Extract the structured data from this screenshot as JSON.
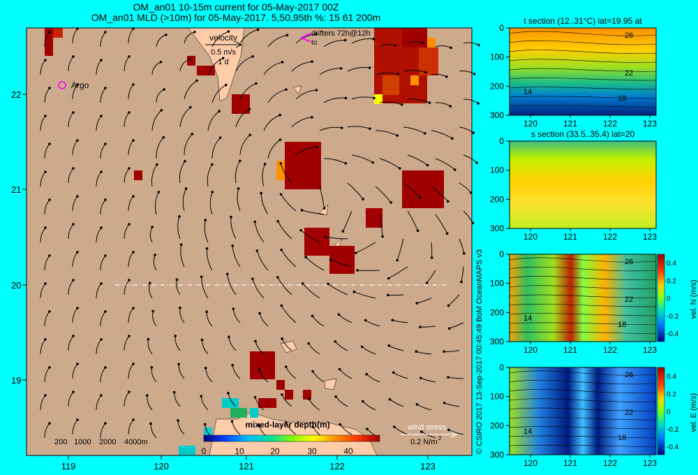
{
  "titles": {
    "line1": "OM_an01 10-15m current for 05-May-2017 00Z",
    "line2": "OM_an01 MLD (>10m) for 05-May-2017. 5,50,95th %: 15   61  200m"
  },
  "main_map": {
    "x_ticks": [
      "119",
      "120",
      "121",
      "122",
      "123"
    ],
    "y_ticks": [
      "22",
      "21",
      "20",
      "19"
    ],
    "velocity_legend": {
      "title": "velocity",
      "speed": "0.5 m/s",
      "duration": "1 d"
    },
    "drifters_label": "drifters 72h@12h",
    "drifter_marker": "to",
    "argo_label": "Argo",
    "depth_contours": [
      "200",
      "1000",
      "2000",
      "4000m"
    ],
    "colorbar": {
      "title": "mixed-layer depth(m)",
      "ticks": [
        "0",
        "10",
        "20",
        "30",
        "40"
      ]
    },
    "wind_stress": {
      "label": "wind stress",
      "value": "0.2 N/m",
      "exponent": "2"
    },
    "colors": {
      "ocean": "#cdaa8c",
      "land": "#ffccaa",
      "border": "#00ffff",
      "high_mld": "#a00000"
    }
  },
  "credit": "© CSIRO 2017   13-Sep-2017 00:45:49 BoM OceanMAPS v3",
  "panels": [
    {
      "title": "t section (12..31°C) lat=19.95 at",
      "x_ticks": [
        "120",
        "121",
        "122",
        "123"
      ],
      "y_ticks": [
        "0",
        "100",
        "200",
        "300"
      ],
      "contour_labels": [
        "26",
        "22",
        "14",
        "18"
      ],
      "colorbar": null
    },
    {
      "title": "s section (33.5..35.4) lat=20",
      "x_ticks": [
        "120",
        "121",
        "122",
        "123"
      ],
      "y_ticks": [
        "0",
        "100",
        "200",
        "300"
      ],
      "contour_labels": [],
      "colorbar": null
    },
    {
      "title": "",
      "x_ticks": [
        "120",
        "121",
        "122",
        "123"
      ],
      "y_ticks": [
        "0",
        "100",
        "200",
        "300"
      ],
      "contour_labels": [
        "26",
        "22",
        "14",
        "18"
      ],
      "colorbar": {
        "label": "vel. N (m/s)",
        "ticks": [
          "0.4",
          "0.2",
          "0",
          "-0.2",
          "-0.4"
        ]
      }
    },
    {
      "title": "",
      "x_ticks": [
        "120",
        "121",
        "122",
        "123"
      ],
      "y_ticks": [
        "0",
        "100",
        "200",
        "300"
      ],
      "contour_labels": [
        "26",
        "22",
        "14",
        "18"
      ],
      "colorbar": {
        "label": "vel. E (m/s)",
        "ticks": [
          "0.4",
          "0.2",
          "0",
          "-0.2",
          "-0.4"
        ]
      }
    }
  ]
}
